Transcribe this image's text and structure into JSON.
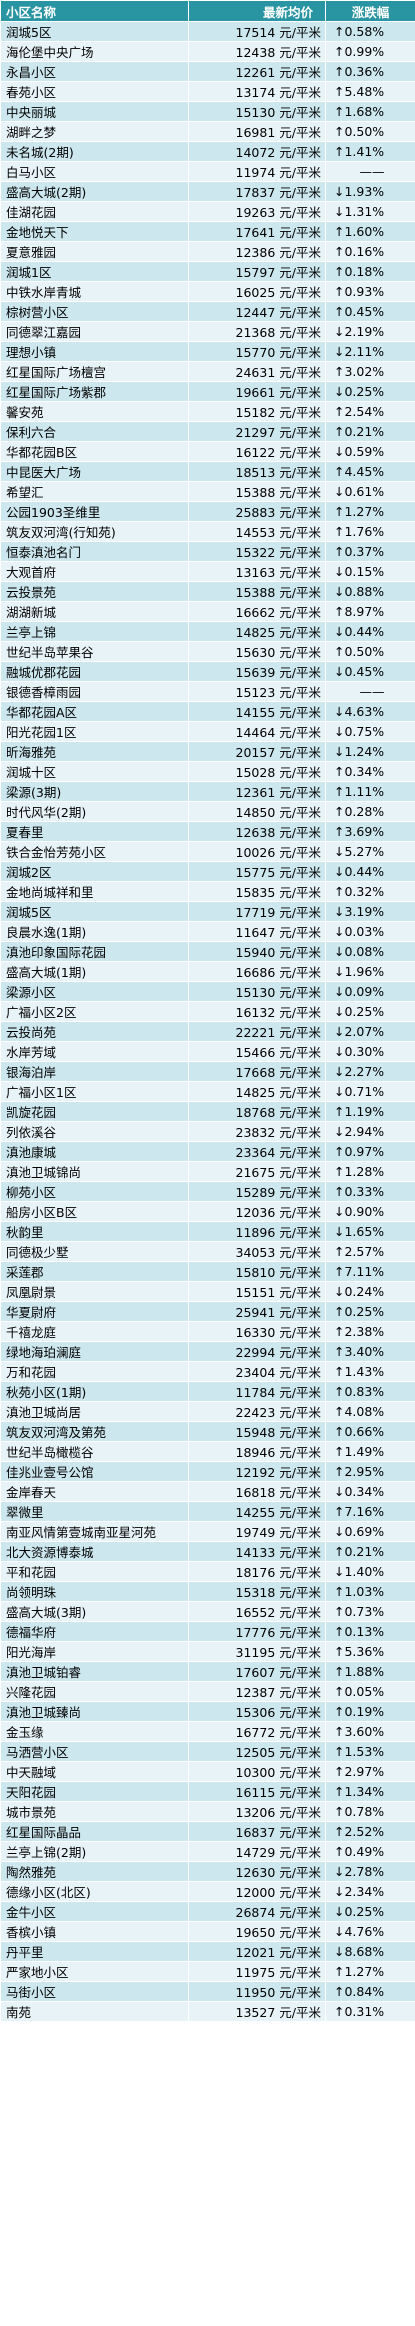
{
  "header": {
    "name": "小区名称",
    "price": "最新均价",
    "change": "涨跌幅"
  },
  "unit": "元/平米",
  "rows": [
    [
      "润城5区",
      "17514",
      "↑0.58%"
    ],
    [
      "海伦堡中央广场",
      "12438",
      "↑0.99%"
    ],
    [
      "永昌小区",
      "12261",
      "↑0.36%"
    ],
    [
      "春苑小区",
      "13174",
      "↑5.48%"
    ],
    [
      "中央丽城",
      "15130",
      "↑1.68%"
    ],
    [
      "湖畔之梦",
      "16981",
      "↑0.50%"
    ],
    [
      "未名城(2期)",
      "14072",
      "↑1.41%"
    ],
    [
      "白马小区",
      "11974",
      "——"
    ],
    [
      "盛高大城(2期)",
      "17837",
      "↓1.93%"
    ],
    [
      "佳湖花园",
      "19263",
      "↓1.31%"
    ],
    [
      "金地悦天下",
      "17641",
      "↑1.60%"
    ],
    [
      "夏意雅园",
      "12386",
      "↑0.16%"
    ],
    [
      "润城1区",
      "15797",
      "↑0.18%"
    ],
    [
      "中铁水岸青城",
      "16025",
      "↑0.93%"
    ],
    [
      "棕树营小区",
      "12447",
      "↑0.45%"
    ],
    [
      "同德翠江嘉园",
      "21368",
      "↓2.19%"
    ],
    [
      "理想小镇",
      "15770",
      "↓2.11%"
    ],
    [
      "红星国际广场檀宫",
      "24631",
      "↑3.02%"
    ],
    [
      "红星国际广场紫郡",
      "19661",
      "↓0.25%"
    ],
    [
      "馨安苑",
      "15182",
      "↑2.54%"
    ],
    [
      "保利六合",
      "21297",
      "↑0.21%"
    ],
    [
      "华都花园B区",
      "16122",
      "↓0.59%"
    ],
    [
      "中昆医大广场",
      "18513",
      "↑4.45%"
    ],
    [
      "希望汇",
      "15388",
      "↓0.61%"
    ],
    [
      "公园1903圣维里",
      "25883",
      "↑1.27%"
    ],
    [
      "筑友双河湾(行知苑)",
      "14553",
      "↑1.76%"
    ],
    [
      "恒泰滇池名门",
      "15322",
      "↑0.37%"
    ],
    [
      "大观首府",
      "13163",
      "↓0.15%"
    ],
    [
      "云投景苑",
      "15388",
      "↓0.88%"
    ],
    [
      "湖湖新城",
      "16662",
      "↑8.97%"
    ],
    [
      "兰亭上锦",
      "14825",
      "↓0.44%"
    ],
    [
      "世纪半岛苹果谷",
      "15630",
      "↑0.50%"
    ],
    [
      "融城优郡花园",
      "15639",
      "↓0.45%"
    ],
    [
      "银德香樟雨园",
      "15123",
      "——"
    ],
    [
      "华都花园A区",
      "14155",
      "↓4.63%"
    ],
    [
      "阳光花园1区",
      "14464",
      "↓0.75%"
    ],
    [
      "昕海雅苑",
      "20157",
      "↓1.24%"
    ],
    [
      "润城十区",
      "15028",
      "↑0.34%"
    ],
    [
      "梁源(3期)",
      "12361",
      "↑1.11%"
    ],
    [
      "时代风华(2期)",
      "14850",
      "↑0.28%"
    ],
    [
      "夏春里",
      "12638",
      "↑3.69%"
    ],
    [
      "铁合金怡芳苑小区",
      "10026",
      "↓5.27%"
    ],
    [
      "润城2区",
      "15775",
      "↓0.44%"
    ],
    [
      "金地尚城祥和里",
      "15835",
      "↑0.32%"
    ],
    [
      "润城5区",
      "17719",
      "↓3.19%"
    ],
    [
      "良晨水逸(1期)",
      "11647",
      "↓0.03%"
    ],
    [
      "滇池印象国际花园",
      "15940",
      "↓0.08%"
    ],
    [
      "盛高大城(1期)",
      "16686",
      "↓1.96%"
    ],
    [
      "梁源小区",
      "15130",
      "↓0.09%"
    ],
    [
      "广福小区2区",
      "16132",
      "↓0.25%"
    ],
    [
      "云投尚苑",
      "22221",
      "↓2.07%"
    ],
    [
      "水岸芳域",
      "15466",
      "↓0.30%"
    ],
    [
      "银海泊岸",
      "17668",
      "↓2.27%"
    ],
    [
      "广福小区1区",
      "14825",
      "↓0.71%"
    ],
    [
      "凯旋花园",
      "18768",
      "↑1.19%"
    ],
    [
      "列依溪谷",
      "23832",
      "↓2.94%"
    ],
    [
      "滇池康城",
      "23364",
      "↑0.97%"
    ],
    [
      "滇池卫城锦尚",
      "21675",
      "↑1.28%"
    ],
    [
      "柳苑小区",
      "15289",
      "↑0.33%"
    ],
    [
      "船房小区B区",
      "12036",
      "↓0.90%"
    ],
    [
      "秋韵里",
      "11896",
      "↓1.65%"
    ],
    [
      "同德极少墅",
      "34053",
      "↑2.57%"
    ],
    [
      "采莲郡",
      "15810",
      "↑7.11%"
    ],
    [
      "凤凰尉景",
      "15151",
      "↓0.24%"
    ],
    [
      "华夏尉府",
      "25941",
      "↑0.25%"
    ],
    [
      "千禧龙庭",
      "16330",
      "↑2.38%"
    ],
    [
      "绿地海珀澜庭",
      "22994",
      "↑3.40%"
    ],
    [
      "万和花园",
      "23404",
      "↑1.43%"
    ],
    [
      "秋苑小区(1期)",
      "11784",
      "↑0.83%"
    ],
    [
      "滇池卫城尚居",
      "22423",
      "↑4.08%"
    ],
    [
      "筑友双河湾及第苑",
      "15948",
      "↑0.66%"
    ],
    [
      "世纪半岛橄榄谷",
      "18946",
      "↑1.49%"
    ],
    [
      "佳兆业壹号公馆",
      "12192",
      "↑2.95%"
    ],
    [
      "金岸春天",
      "16818",
      "↓0.34%"
    ],
    [
      "翠微里",
      "14255",
      "↑7.16%"
    ],
    [
      "南亚风情第壹城南亚星河苑",
      "19749",
      "↓0.69%"
    ],
    [
      "北大资源博泰城",
      "14133",
      "↑0.21%"
    ],
    [
      "平和花园",
      "18176",
      "↓1.40%"
    ],
    [
      "尚领明珠",
      "15318",
      "↑1.03%"
    ],
    [
      "盛高大城(3期)",
      "16552",
      "↑0.73%"
    ],
    [
      "德福华府",
      "17776",
      "↑0.13%"
    ],
    [
      "阳光海岸",
      "31195",
      "↑5.36%"
    ],
    [
      "滇池卫城铂睿",
      "17607",
      "↑1.88%"
    ],
    [
      "兴隆花园",
      "12387",
      "↑0.05%"
    ],
    [
      "滇池卫城臻尚",
      "15306",
      "↑0.19%"
    ],
    [
      "金玉缘",
      "16772",
      "↑3.60%"
    ],
    [
      "马洒营小区",
      "12505",
      "↑1.53%"
    ],
    [
      "中天融域",
      "10300",
      "↑2.97%"
    ],
    [
      "天阳花园",
      "16115",
      "↑1.34%"
    ],
    [
      "城市景苑",
      "13206",
      "↑0.78%"
    ],
    [
      "红星国际晶品",
      "16837",
      "↑2.52%"
    ],
    [
      "兰亭上锦(2期)",
      "14729",
      "↑0.49%"
    ],
    [
      "陶然雅苑",
      "12630",
      "↓2.78%"
    ],
    [
      "德缘小区(北区)",
      "12000",
      "↓2.34%"
    ],
    [
      "金牛小区",
      "26874",
      "↓0.25%"
    ],
    [
      "香槟小镇",
      "19650",
      "↓4.76%"
    ],
    [
      "丹平里",
      "12021",
      "↓8.68%"
    ],
    [
      "严家地小区",
      "11975",
      "↑1.27%"
    ],
    [
      "马街小区",
      "11950",
      "↑0.84%"
    ],
    [
      "南苑",
      "13527",
      "↑0.31%"
    ]
  ]
}
